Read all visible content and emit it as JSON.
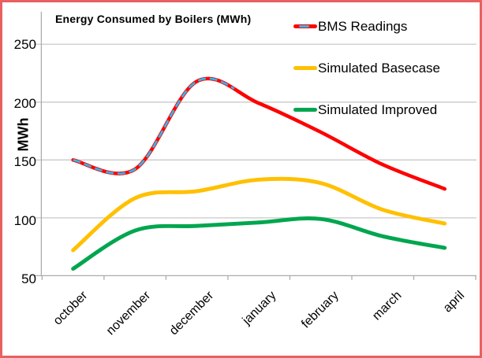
{
  "window": {
    "border_color": "#E86060",
    "background": "#FFFFFF"
  },
  "title": "Energy Consumed by Boilers (MWh)",
  "y_axis": {
    "label": "MWh",
    "tick_labels": [
      "250",
      "200",
      "150",
      "100",
      "50"
    ],
    "tick_values": [
      250,
      200,
      150,
      100,
      50
    ],
    "min": 50,
    "max": 250,
    "gridline_color": "#C9C9C9",
    "axis_color": "#ACACAC"
  },
  "x_axis": {
    "labels": [
      "october",
      "november",
      "december",
      "january",
      "february",
      "march",
      "april"
    ],
    "label_rotation_deg": -45
  },
  "legend": {
    "position": "top-right",
    "items": [
      {
        "label": "BMS Readings",
        "color": "#FF0000",
        "overlay_color": "#35B6E9",
        "overlay_style": "dashed"
      },
      {
        "label": "Simulated Basecase",
        "color": "#FFC000"
      },
      {
        "label": "Simulated Improved",
        "color": "#00A64F"
      }
    ]
  },
  "chart_data": {
    "type": "line",
    "title": "Energy Consumed by Boilers (MWh)",
    "xlabel": "",
    "ylabel": "MWh",
    "ylim": [
      50,
      250
    ],
    "y_gridlines": [
      50,
      100,
      150,
      200,
      250
    ],
    "grid": true,
    "line_style": "smooth",
    "legend_position": "top-right",
    "categories": [
      "october",
      "november",
      "december",
      "january",
      "february",
      "march",
      "april"
    ],
    "series": [
      {
        "name": "BMS Readings",
        "color": "#FF0000",
        "values": [
          150,
          142,
          218,
          199,
          174,
          146,
          125
        ],
        "overlay": {
          "color": "#35B6E9",
          "style": "dashed",
          "coverage": "october through early january (metered portion of the red curve)"
        }
      },
      {
        "name": "Simulated Basecase",
        "color": "#FFC000",
        "values": [
          72,
          117,
          123,
          133,
          130,
          107,
          95
        ]
      },
      {
        "name": "Simulated Improved",
        "color": "#00A64F",
        "values": [
          56,
          89,
          93,
          96,
          99,
          84,
          74
        ]
      }
    ]
  }
}
